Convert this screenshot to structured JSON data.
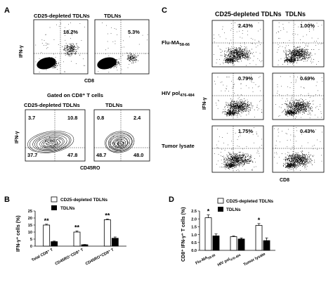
{
  "panel_a": {
    "label": "A",
    "title_left": "CD25-depleted TDLNs",
    "title_right": "TDLNs",
    "pct_left": "18.2%",
    "pct_right": "5.3%",
    "y_label": "IFN-γ",
    "x_label": "CD8",
    "gated_title": "Gated on CD8⁺ T cells",
    "contour_title_left": "CD25-depleted TDLNs",
    "contour_title_right": "TDLNs",
    "contour_left": {
      "ul": "3.7",
      "ur": "10.8",
      "ll": "37.7",
      "lr": "47.8"
    },
    "contour_right": {
      "ul": "0.8",
      "ur": "2.4",
      "ll": "48.7",
      "lr": "48.0"
    },
    "contour_y_label": "IFN-γ",
    "contour_x_label": "CD45RO"
  },
  "panel_c": {
    "label": "C",
    "col_left": "CD25-depleted TDLNs",
    "col_right": "TDLNs",
    "rows": [
      {
        "name": "Flu-MA",
        "sub": "58-66",
        "left": "2.43%",
        "right": "1.00%"
      },
      {
        "name": "HIV pol",
        "sub": "476-484",
        "left": "0.79%",
        "right": "0.69%"
      },
      {
        "name": "Tumor lysate",
        "sub": "",
        "left": "1.75%",
        "right": "0.43%"
      }
    ],
    "y_label": "IFN-γ",
    "x_label": "CD8"
  },
  "panel_b": {
    "label": "B",
    "legend": [
      "CD25-depleted TDLNs",
      "TDLNs"
    ],
    "y_label": "IFN-γ⁺ cells (%)",
    "y_ticks": [
      "0",
      "5",
      "10",
      "15",
      "20",
      "25"
    ],
    "cats": [
      "Total CD8⁺ T",
      "CD45RO⁻CD8⁺ T",
      "CD45RO⁺CD8⁺ T"
    ],
    "sig": [
      "**",
      "**",
      "**"
    ]
  },
  "panel_d": {
    "label": "D",
    "legend": [
      "CD25-depleted TDLNs",
      "TDLNs"
    ],
    "y_label": "CD8⁺ IFN-γ⁺ T cells (%)",
    "y_ticks": [
      "0.0",
      "0.5",
      "1.0",
      "1.5",
      "2.0",
      "2.5"
    ],
    "cats": [
      "Flu-MA",
      "HIV pol",
      "Tumor lysate"
    ],
    "cat_subs": [
      "58-66",
      "476-484",
      ""
    ],
    "sig": [
      "*",
      "",
      "*"
    ]
  },
  "chart_data": [
    {
      "type": "bar",
      "panel": "B",
      "categories": [
        "Total CD8⁺ T",
        "CD45RO⁻CD8⁺ T",
        "CD45RO⁺CD8⁺ T"
      ],
      "ylabel": "IFN-γ⁺ cells (%)",
      "ylim": [
        0,
        25
      ],
      "series": [
        {
          "name": "CD25-depleted TDLNs",
          "values": [
            15.0,
            10.0,
            18.8
          ],
          "errors": [
            0.6,
            0.8,
            0.5
          ],
          "color": "#ffffff"
        },
        {
          "name": "TDLNs",
          "values": [
            3.2,
            1.0,
            5.6
          ],
          "errors": [
            0.4,
            0.2,
            0.9
          ],
          "color": "#000000"
        }
      ],
      "legend": "top-left"
    },
    {
      "type": "bar",
      "panel": "D",
      "categories": [
        "Flu-MA58-66",
        "HIV pol476-484",
        "Tumor lysate"
      ],
      "ylabel": "CD8⁺ IFN-γ⁺ T cells (%)",
      "ylim": [
        0,
        2.5
      ],
      "series": [
        {
          "name": "CD25-depleted TDLNs",
          "values": [
            2.07,
            0.87,
            1.58
          ],
          "errors": [
            0.18,
            0.04,
            0.12
          ],
          "color": "#ffffff"
        },
        {
          "name": "TDLNs",
          "values": [
            0.92,
            0.72,
            0.62
          ],
          "errors": [
            0.12,
            0.07,
            0.17
          ],
          "color": "#000000"
        }
      ],
      "legend": "top-right"
    }
  ]
}
